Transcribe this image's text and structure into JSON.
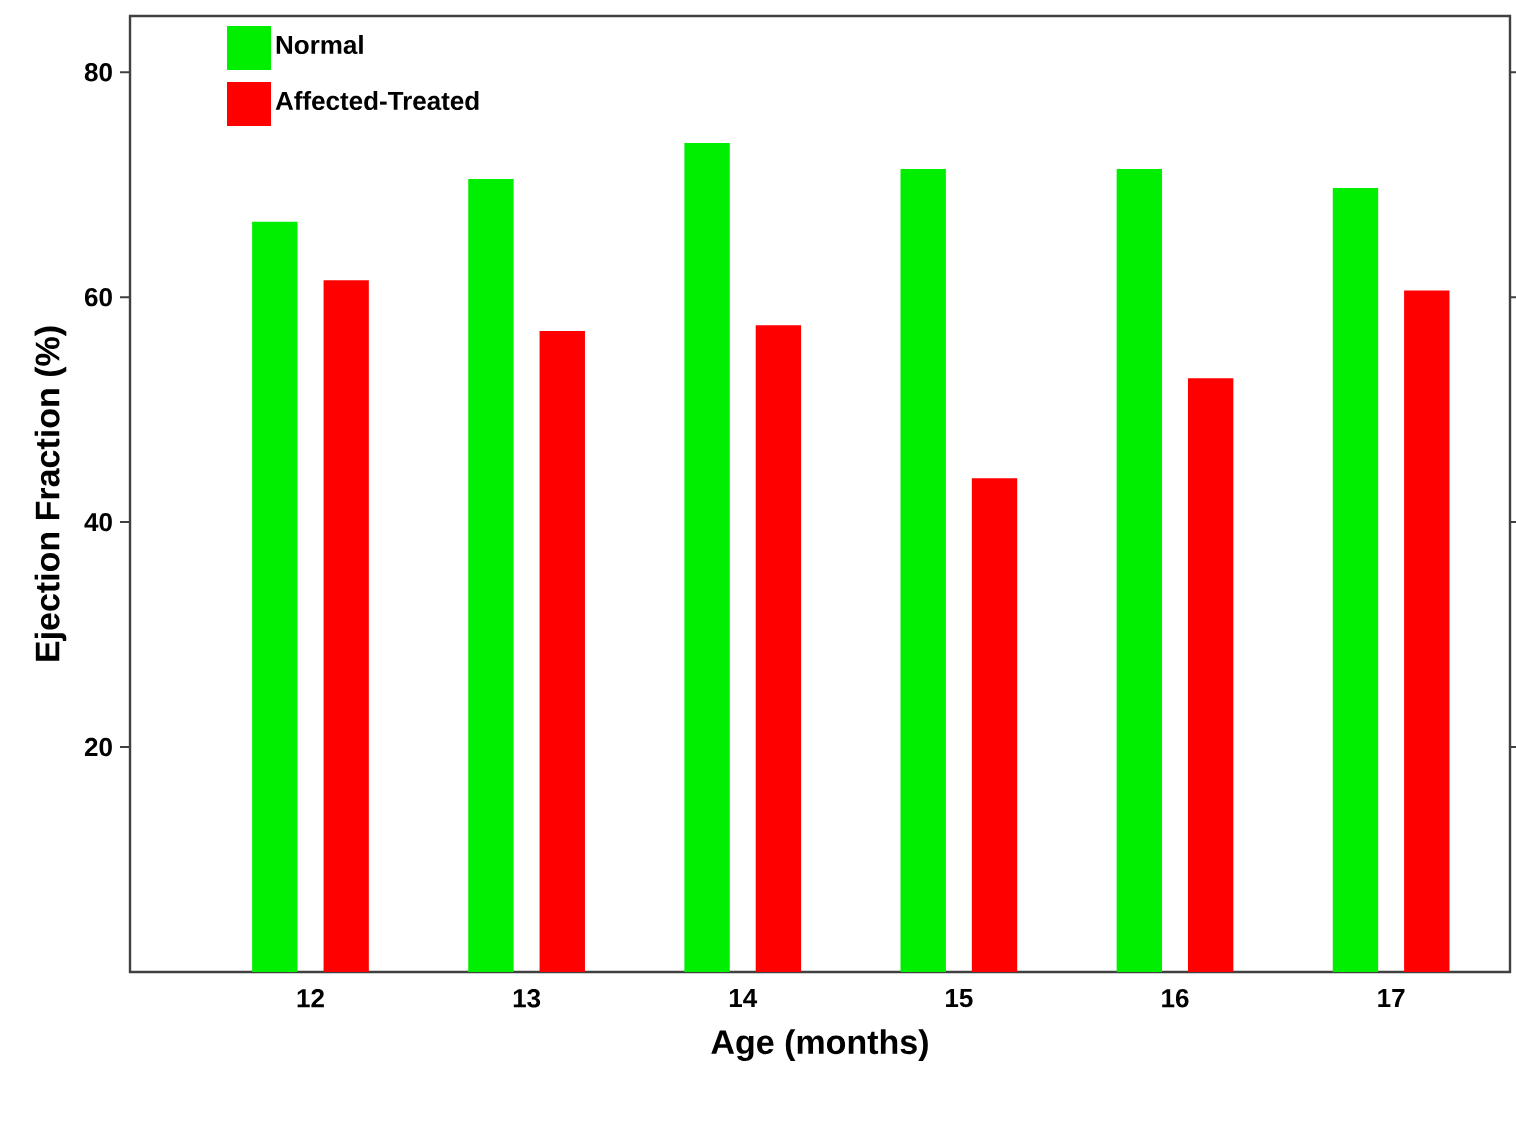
{
  "chart_data": {
    "type": "bar",
    "xlabel": "Age (months)",
    "ylabel": "Ejection Fraction (%)",
    "categories": [
      "12",
      "13",
      "14",
      "15",
      "16",
      "17"
    ],
    "series": [
      {
        "name": "Normal",
        "color": "#00ee00",
        "values": [
          66.7,
          70.5,
          73.7,
          71.4,
          71.4,
          69.7
        ]
      },
      {
        "name": "Affected-Treated",
        "color": "#ff0000",
        "values": [
          61.5,
          57.0,
          57.5,
          43.9,
          52.8,
          60.6
        ]
      }
    ],
    "ylim": [
      0,
      85
    ],
    "yticks": [
      20,
      40,
      60,
      80
    ],
    "legend": "top left"
  }
}
